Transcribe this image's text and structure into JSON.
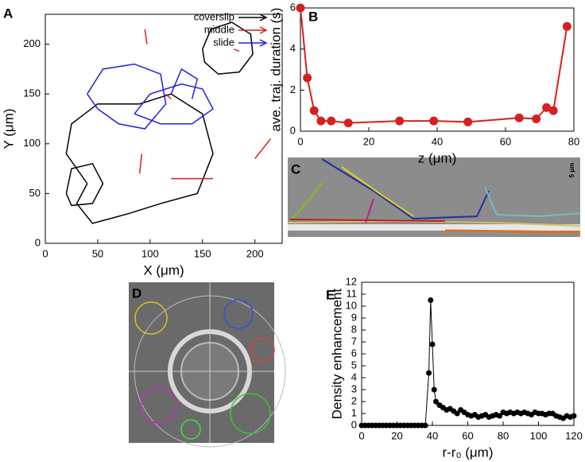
{
  "chart_data": [
    {
      "type": "trajectory",
      "label": "A",
      "xlabel": "X (μm)",
      "ylabel": "Y (μm)",
      "xlim": [
        0,
        226
      ],
      "ylim": [
        0,
        230
      ],
      "xticks": [
        0,
        50,
        100,
        150,
        200
      ],
      "yticks": [
        0,
        50,
        100,
        150,
        200
      ],
      "legend": "upper right",
      "series": [
        {
          "name": "coverslip",
          "color": "#000000",
          "x": [
            150,
            158,
            178,
            196,
            198,
            185,
            165,
            152,
            150,
            null,
            40,
            20,
            25,
            50,
            90,
            120,
            150,
            160,
            145,
            110,
            80,
            45,
            30,
            40,
            null,
            20,
            25,
            45,
            55,
            45,
            25,
            20
          ],
          "y": [
            195,
            215,
            222,
            210,
            190,
            172,
            170,
            182,
            195,
            null,
            60,
            90,
            120,
            140,
            140,
            150,
            130,
            90,
            50,
            40,
            30,
            20,
            40,
            60,
            null,
            50,
            75,
            80,
            60,
            40,
            38,
            50
          ]
        },
        {
          "name": "middle",
          "color": "#d42020",
          "x": [
            95,
            97,
            null,
            180,
            185,
            null,
            115,
            120,
            null,
            200,
            215,
            null,
            120,
            160,
            null,
            90,
            92
          ],
          "y": [
            215,
            200,
            null,
            195,
            193,
            null,
            150,
            145,
            null,
            85,
            105,
            null,
            65,
            65,
            null,
            70,
            90
          ]
        },
        {
          "name": "slide",
          "color": "#2020e0",
          "x": [
            40,
            55,
            85,
            110,
            115,
            95,
            70,
            50,
            40,
            null,
            85,
            100,
            130,
            150,
            160,
            140,
            110,
            85,
            null,
            120,
            130,
            145,
            140
          ],
          "y": [
            150,
            175,
            180,
            170,
            140,
            115,
            120,
            135,
            150,
            null,
            130,
            150,
            160,
            155,
            135,
            120,
            120,
            130,
            null,
            150,
            175,
            165,
            145
          ]
        }
      ]
    },
    {
      "type": "line",
      "label": "B",
      "xlabel": "z (μm)",
      "ylabel": "ave. traj. duration (s)",
      "xlim": [
        0,
        80
      ],
      "ylim": [
        0,
        6
      ],
      "xticks": [
        0,
        20,
        40,
        60,
        80
      ],
      "yticks": [
        0,
        2,
        4,
        6
      ],
      "x": [
        0,
        2,
        4,
        6,
        9,
        14,
        29,
        39,
        49,
        64,
        69,
        72,
        74,
        78
      ],
      "series": [
        {
          "color": "#d42020",
          "values": [
            6,
            2.6,
            1,
            0.5,
            0.5,
            0.4,
            0.5,
            0.5,
            0.45,
            0.65,
            0.6,
            1.15,
            1.0,
            5.1
          ]
        }
      ]
    },
    {
      "type": "image",
      "label": "C",
      "annotation": "5 μm"
    },
    {
      "type": "image",
      "label": "D"
    },
    {
      "type": "line",
      "label": "E",
      "xlabel": "r-r₀ (μm)",
      "ylabel": "Density enhancement",
      "xlim": [
        0,
        120
      ],
      "ylim": [
        0,
        12
      ],
      "xticks": [
        0,
        20,
        40,
        60,
        80,
        100,
        120
      ],
      "yticks": [
        0,
        1,
        2,
        3,
        4,
        5,
        6,
        7,
        8,
        9,
        10,
        11,
        12
      ],
      "x": [
        0,
        2,
        4,
        6,
        8,
        10,
        12,
        14,
        16,
        18,
        20,
        22,
        24,
        26,
        28,
        30,
        32,
        34,
        36,
        38,
        39,
        40,
        41,
        42,
        44,
        46,
        48,
        50,
        52,
        54,
        56,
        58,
        60,
        62,
        64,
        66,
        68,
        70,
        72,
        74,
        76,
        78,
        80,
        82,
        84,
        86,
        88,
        90,
        92,
        94,
        96,
        98,
        100,
        102,
        104,
        106,
        108,
        110,
        112,
        114,
        116,
        118,
        120
      ],
      "values": [
        0,
        0,
        0,
        0,
        0,
        0,
        0,
        0,
        0,
        0,
        0,
        0,
        0,
        0,
        0,
        0,
        0,
        0,
        0,
        4.4,
        10.5,
        6.8,
        3.0,
        2.0,
        1.7,
        1.5,
        1.3,
        1.4,
        1.2,
        1.0,
        1.3,
        1.1,
        0.9,
        0.8,
        0.9,
        0.7,
        0.8,
        0.9,
        0.7,
        0.8,
        0.9,
        0.8,
        1.1,
        1.0,
        1.1,
        1.0,
        1.1,
        1.0,
        1.1,
        1.0,
        0.9,
        1.1,
        1.0,
        1.0,
        0.9,
        1.0,
        1.0,
        0.8,
        0.7,
        0.6,
        0.8,
        0.7,
        0.8
      ],
      "color": "#000000"
    }
  ]
}
